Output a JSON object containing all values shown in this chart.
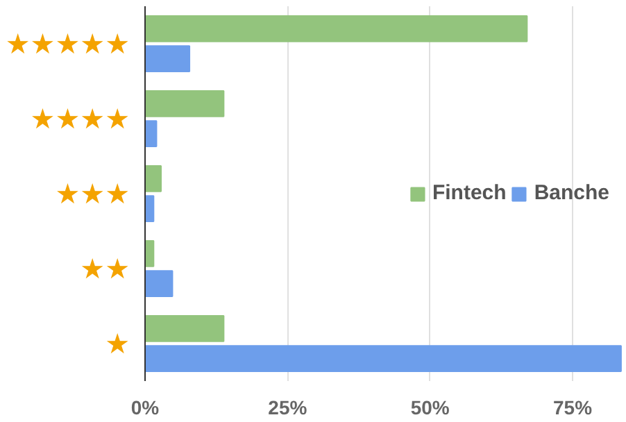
{
  "chart_data": {
    "type": "bar",
    "orientation": "horizontal",
    "categories": [
      "★★★★★",
      "★★★★",
      "★★★",
      "★★",
      "★"
    ],
    "series": [
      {
        "name": "Fintech",
        "color": "#93c47d",
        "values": [
          67,
          13.8,
          2.8,
          1.5,
          13.8
        ]
      },
      {
        "name": "Banche",
        "color": "#6d9eeb",
        "values": [
          7.8,
          2,
          1.5,
          4.8,
          83.5
        ]
      }
    ],
    "xlim": [
      0,
      84
    ],
    "xticks": [
      {
        "value": 0,
        "label": "0%"
      },
      {
        "value": 25,
        "label": "25%"
      },
      {
        "value": 50,
        "label": "50%"
      },
      {
        "value": 75,
        "label": "75%"
      }
    ],
    "grid": "x",
    "legend": "right"
  }
}
